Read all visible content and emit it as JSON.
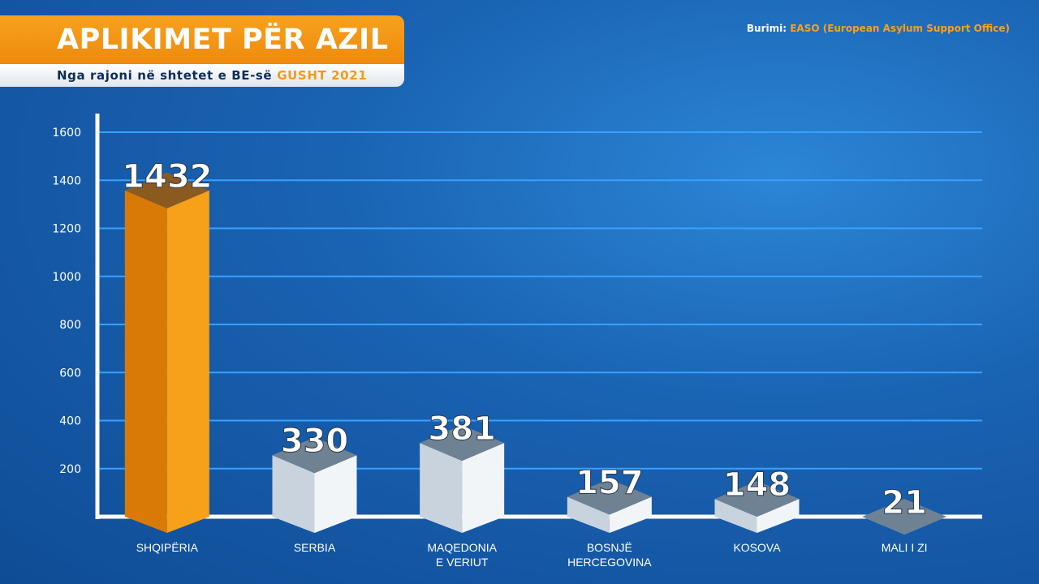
{
  "header": {
    "title": "APLIKIMET PËR AZIL",
    "subtitle": "Nga rajoni në shtetet e BE-së",
    "period": "GUSHT 2021"
  },
  "source": {
    "label": "Burimi:",
    "value": "EASO (European Asylum Support Office)"
  },
  "colors": {
    "highlight": "#f39a1a",
    "bar": "#e6ecf2",
    "grid": "#3aa0ff",
    "axis": "#ffffff"
  },
  "chart_data": {
    "type": "bar",
    "categories": [
      [
        "SHQIPËRIA"
      ],
      [
        "SERBIA"
      ],
      [
        "MAQEDONIA",
        "E VERIUT"
      ],
      [
        "BOSNJË",
        "HERCEGOVINA"
      ],
      [
        "KOSOVA"
      ],
      [
        "MALI I ZI"
      ]
    ],
    "values": [
      1432,
      330,
      381,
      157,
      148,
      21
    ],
    "highlight_index": 0,
    "ylim": [
      0,
      1600
    ],
    "yticks": [
      200,
      400,
      600,
      800,
      1000,
      1200,
      1400,
      1600
    ],
    "grid": true
  }
}
